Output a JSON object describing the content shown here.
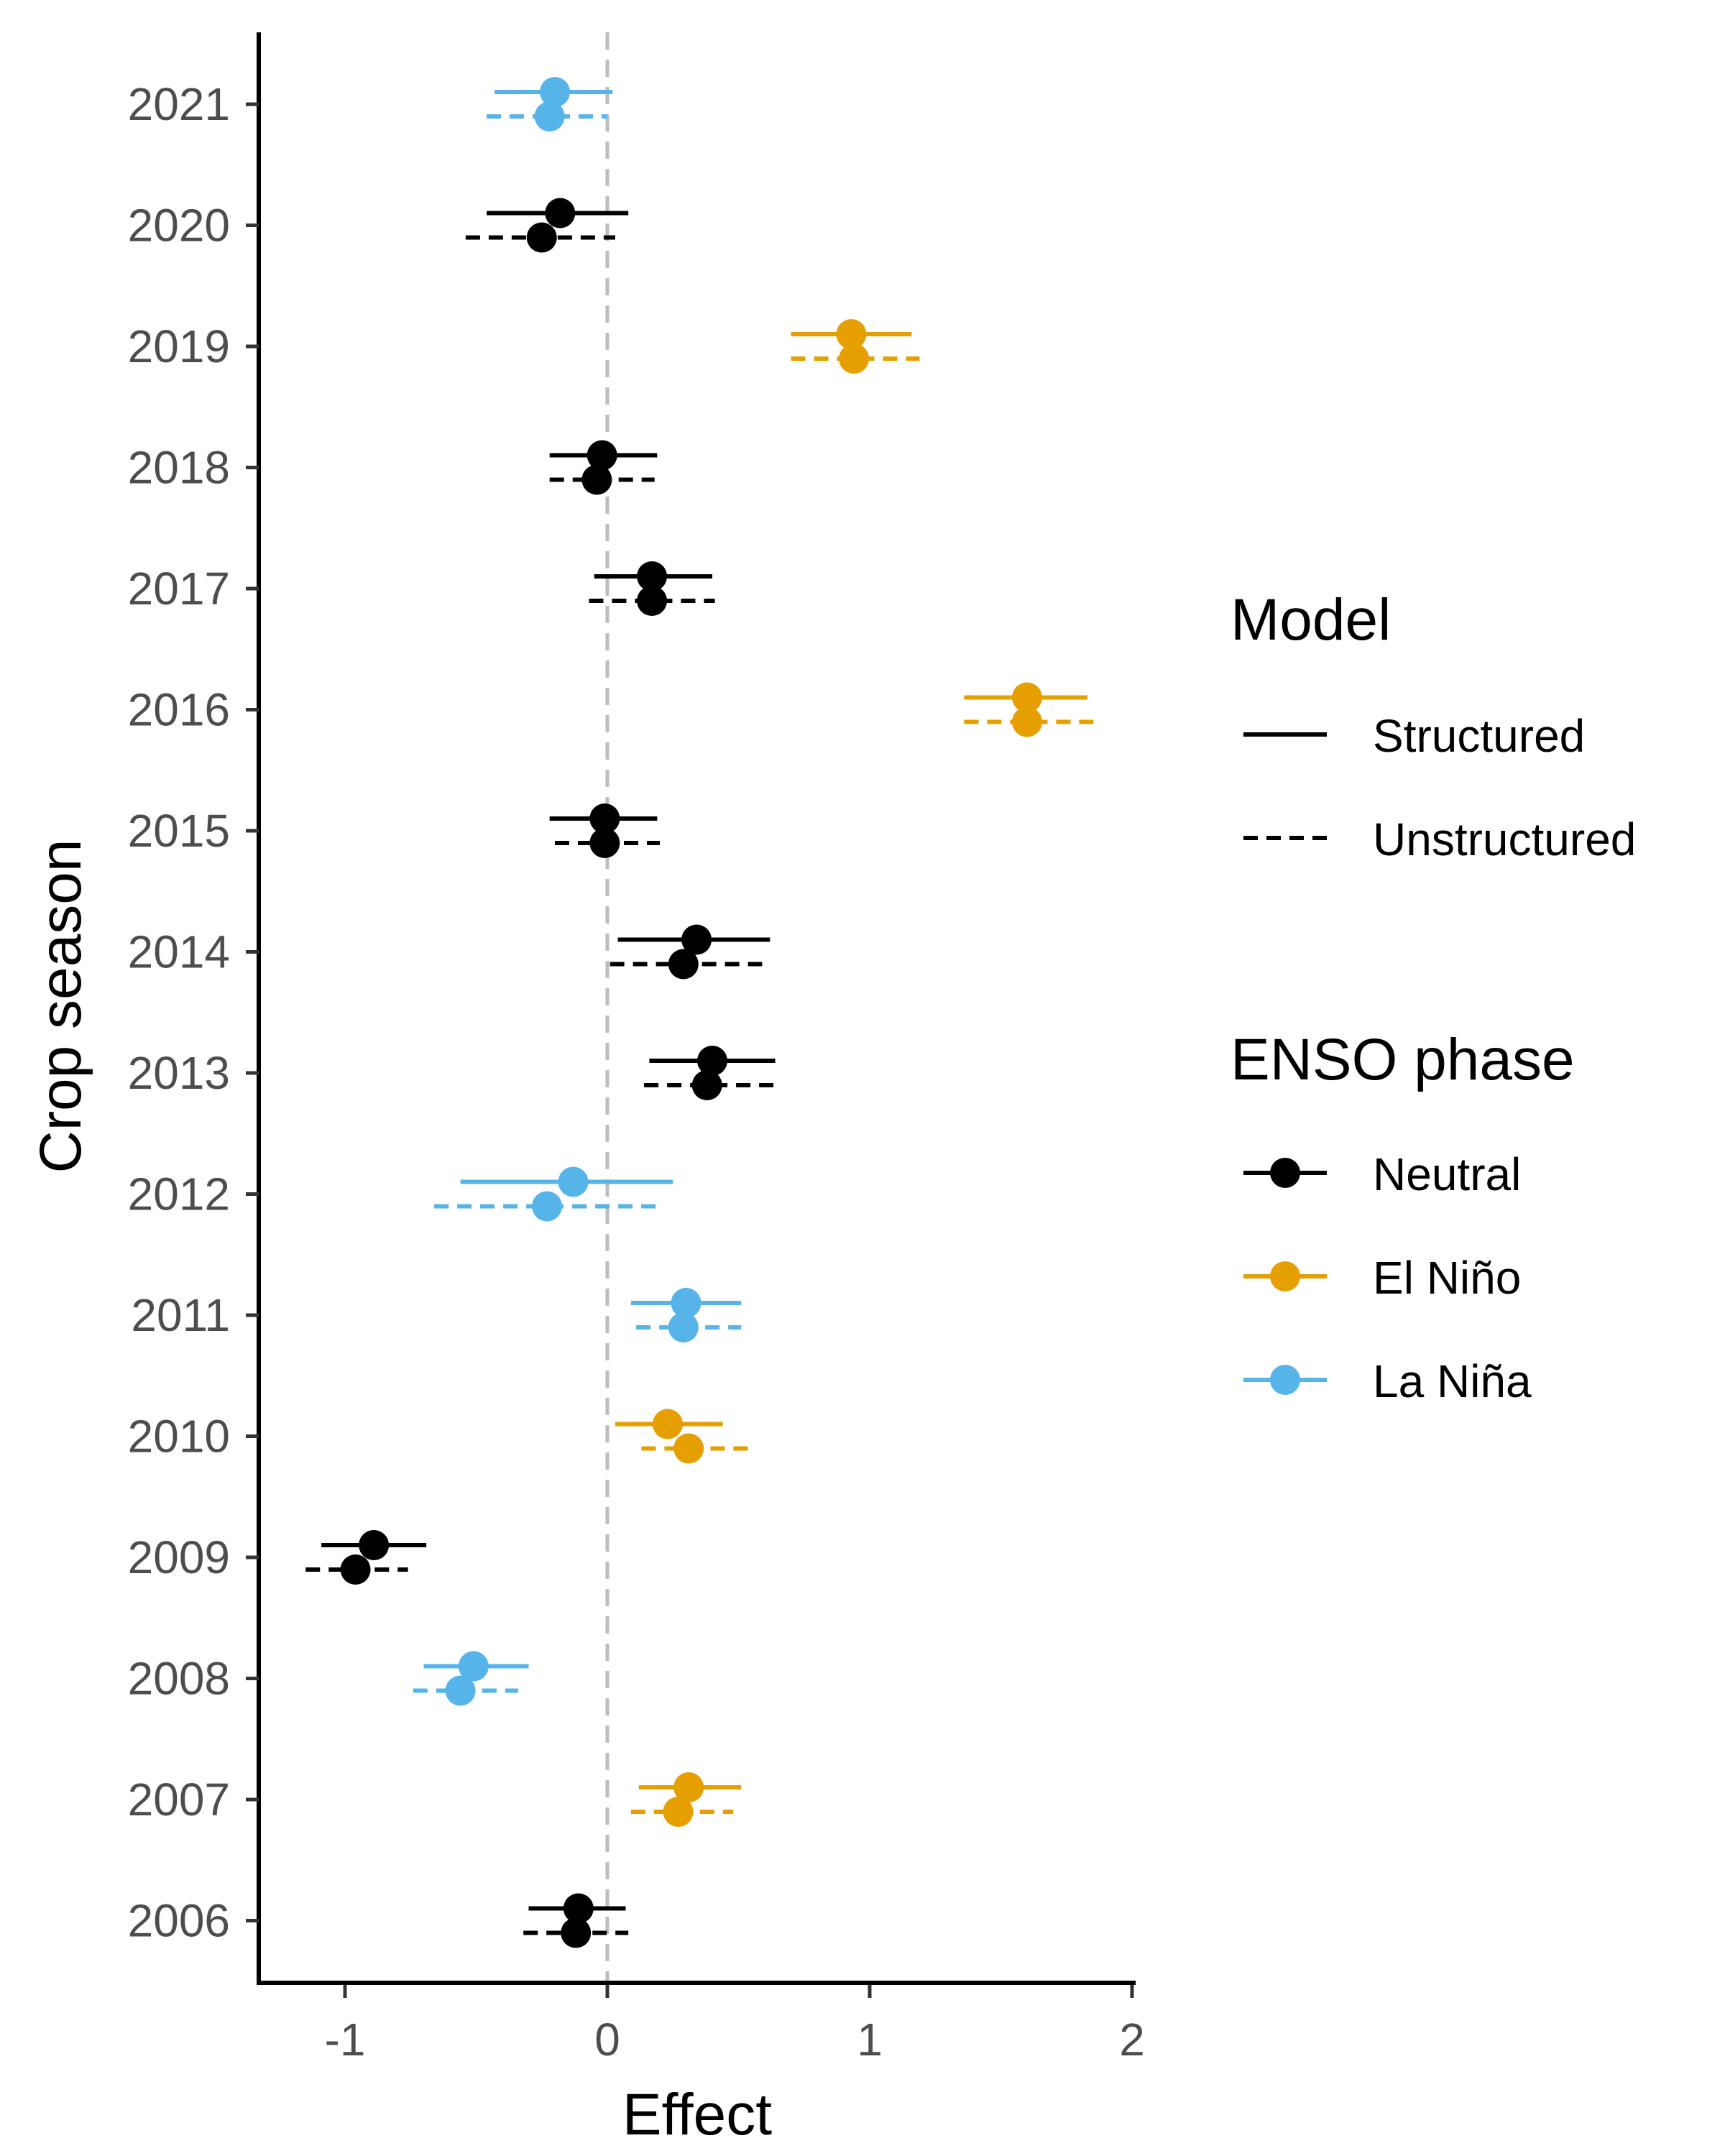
{
  "chart_data": {
    "type": "forest",
    "xlabel": "Effect",
    "ylabel": "Crop season",
    "xlim": [
      -1.35,
      2.0
    ],
    "xticks": [
      -1,
      0,
      1,
      2
    ],
    "xtick_labels": [
      "-1",
      "0",
      "1",
      "2"
    ],
    "reference_line_x": 0,
    "colors": {
      "Neutral": "#000000",
      "El Niño": "#E69F00",
      "La Niña": "#56B4E9"
    },
    "legend": {
      "model_title": "Model",
      "model_items": [
        {
          "label": "Structured",
          "style": "solid"
        },
        {
          "label": "Unstructured",
          "style": "dashed"
        }
      ],
      "phase_title": "ENSO phase",
      "phase_items": [
        {
          "label": "Neutral",
          "color": "#000000"
        },
        {
          "label": "El Niño",
          "color": "#E69F00"
        },
        {
          "label": "La Niña",
          "color": "#56B4E9"
        }
      ]
    },
    "seasons": [
      {
        "season": "2021",
        "phase": "La Niña",
        "structured": {
          "est": -0.2,
          "lo": -0.43,
          "hi": 0.02
        },
        "unstructured": {
          "est": -0.22,
          "lo": -0.46,
          "hi": 0.0
        }
      },
      {
        "season": "2020",
        "phase": "Neutral",
        "structured": {
          "est": -0.18,
          "lo": -0.46,
          "hi": 0.08
        },
        "unstructured": {
          "est": -0.25,
          "lo": -0.54,
          "hi": 0.03
        }
      },
      {
        "season": "2019",
        "phase": "El Niño",
        "structured": {
          "est": 0.93,
          "lo": 0.7,
          "hi": 1.16
        },
        "unstructured": {
          "est": 0.94,
          "lo": 0.7,
          "hi": 1.19
        }
      },
      {
        "season": "2018",
        "phase": "Neutral",
        "structured": {
          "est": -0.02,
          "lo": -0.22,
          "hi": 0.19
        },
        "unstructured": {
          "est": -0.04,
          "lo": -0.22,
          "hi": 0.18
        }
      },
      {
        "season": "2017",
        "phase": "Neutral",
        "structured": {
          "est": 0.17,
          "lo": -0.05,
          "hi": 0.4
        },
        "unstructured": {
          "est": 0.17,
          "lo": -0.07,
          "hi": 0.41
        }
      },
      {
        "season": "2016",
        "phase": "El Niño",
        "structured": {
          "est": 1.6,
          "lo": 1.36,
          "hi": 1.83
        },
        "unstructured": {
          "est": 1.6,
          "lo": 1.36,
          "hi": 1.86
        }
      },
      {
        "season": "2015",
        "phase": "Neutral",
        "structured": {
          "est": -0.01,
          "lo": -0.22,
          "hi": 0.19
        },
        "unstructured": {
          "est": -0.01,
          "lo": -0.2,
          "hi": 0.2
        }
      },
      {
        "season": "2014",
        "phase": "Neutral",
        "structured": {
          "est": 0.34,
          "lo": 0.04,
          "hi": 0.62
        },
        "unstructured": {
          "est": 0.29,
          "lo": 0.01,
          "hi": 0.59
        }
      },
      {
        "season": "2013",
        "phase": "Neutral",
        "structured": {
          "est": 0.4,
          "lo": 0.16,
          "hi": 0.64
        },
        "unstructured": {
          "est": 0.38,
          "lo": 0.14,
          "hi": 0.64
        }
      },
      {
        "season": "2012",
        "phase": "La Niña",
        "structured": {
          "est": -0.13,
          "lo": -0.56,
          "hi": 0.25
        },
        "unstructured": {
          "est": -0.23,
          "lo": -0.66,
          "hi": 0.19
        }
      },
      {
        "season": "2011",
        "phase": "La Niña",
        "structured": {
          "est": 0.3,
          "lo": 0.09,
          "hi": 0.51
        },
        "unstructured": {
          "est": 0.29,
          "lo": 0.11,
          "hi": 0.51
        }
      },
      {
        "season": "2010",
        "phase": "El Niño",
        "structured": {
          "est": 0.23,
          "lo": 0.03,
          "hi": 0.44
        },
        "unstructured": {
          "est": 0.31,
          "lo": 0.13,
          "hi": 0.54
        }
      },
      {
        "season": "2009",
        "phase": "Neutral",
        "structured": {
          "est": -0.89,
          "lo": -1.09,
          "hi": -0.69
        },
        "unstructured": {
          "est": -0.96,
          "lo": -1.15,
          "hi": -0.76
        }
      },
      {
        "season": "2008",
        "phase": "La Niña",
        "structured": {
          "est": -0.51,
          "lo": -0.7,
          "hi": -0.3
        },
        "unstructured": {
          "est": -0.56,
          "lo": -0.74,
          "hi": -0.34
        }
      },
      {
        "season": "2007",
        "phase": "El Niño",
        "structured": {
          "est": 0.31,
          "lo": 0.12,
          "hi": 0.51
        },
        "unstructured": {
          "est": 0.27,
          "lo": 0.09,
          "hi": 0.48
        }
      },
      {
        "season": "2006",
        "phase": "Neutral",
        "structured": {
          "est": -0.11,
          "lo": -0.3,
          "hi": 0.07
        },
        "unstructured": {
          "est": -0.12,
          "lo": -0.32,
          "hi": 0.08
        }
      }
    ]
  }
}
